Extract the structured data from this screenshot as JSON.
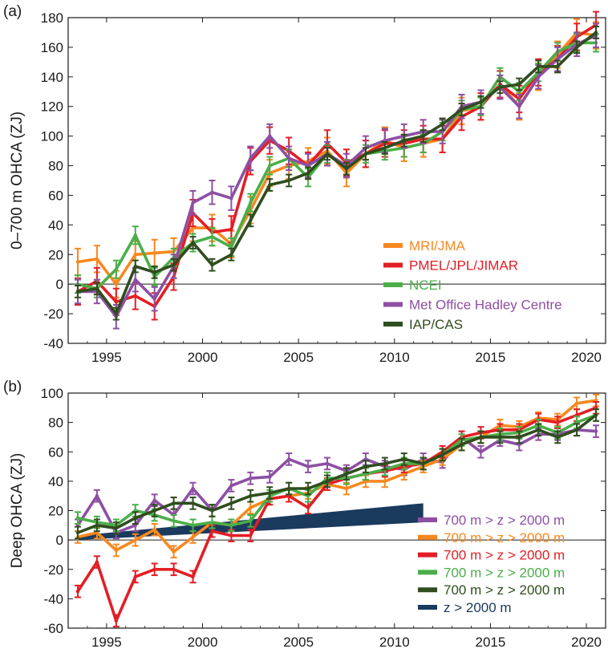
{
  "chart_data": [
    {
      "panel_label": "(a)",
      "type": "line",
      "ylabel": "0–700 m OHCA (ZJ)",
      "xlim": [
        1993,
        2021
      ],
      "ylim": [
        -40,
        180
      ],
      "xticks": [
        1995,
        2000,
        2005,
        2010,
        2015,
        2020
      ],
      "yticks": [
        -40,
        -20,
        0,
        20,
        40,
        60,
        80,
        100,
        120,
        140,
        160,
        180
      ],
      "zero_line": true,
      "legend_position": "bottom-right",
      "x": [
        1993.5,
        1994.5,
        1995.5,
        1996.5,
        1997.5,
        1998.5,
        1999.5,
        2000.5,
        2001.5,
        2002.5,
        2003.5,
        2004.5,
        2005.5,
        2006.5,
        2007.5,
        2008.5,
        2009.5,
        2010.5,
        2011.5,
        2012.5,
        2013.5,
        2014.5,
        2015.5,
        2016.5,
        2017.5,
        2018.5,
        2019.5,
        2020.5
      ],
      "series": [
        {
          "name": "MRI/JMA",
          "color": "#f7881f",
          "err": 9,
          "values": [
            15,
            17,
            0,
            20,
            21,
            22,
            38,
            38,
            27,
            50,
            75,
            80,
            83,
            90,
            75,
            88,
            97,
            92,
            95,
            98,
            117,
            120,
            135,
            120,
            140,
            155,
            170,
            168
          ]
        },
        {
          "name": "PMEL/JPL/JIMAR",
          "color": "#e31e24",
          "err": 9,
          "values": [
            -5,
            2,
            -12,
            -8,
            -15,
            5,
            48,
            35,
            37,
            83,
            97,
            90,
            80,
            95,
            82,
            88,
            95,
            95,
            98,
            98,
            113,
            120,
            135,
            125,
            143,
            152,
            167,
            175
          ]
        },
        {
          "name": "NCEI",
          "color": "#4bae49",
          "err": 6,
          "values": [
            0,
            -3,
            10,
            33,
            5,
            18,
            28,
            32,
            25,
            55,
            80,
            85,
            72,
            88,
            78,
            88,
            90,
            92,
            95,
            103,
            118,
            120,
            140,
            130,
            143,
            157,
            163,
            163
          ]
        },
        {
          "name": "Met Office Hadley Centre",
          "color": "#8d4fa3",
          "err": 8,
          "values": [
            -5,
            -5,
            -22,
            3,
            -10,
            12,
            55,
            62,
            58,
            85,
            100,
            85,
            80,
            88,
            80,
            92,
            97,
            100,
            103,
            103,
            120,
            123,
            133,
            120,
            140,
            152,
            162,
            168
          ]
        },
        {
          "name": "IAP/CAS",
          "color": "#2f4d1e",
          "err": 4,
          "values": [
            -5,
            -3,
            -20,
            12,
            8,
            13,
            28,
            13,
            20,
            43,
            67,
            70,
            75,
            88,
            78,
            88,
            92,
            97,
            100,
            108,
            118,
            123,
            133,
            135,
            147,
            147,
            160,
            170
          ]
        }
      ]
    },
    {
      "panel_label": "(b)",
      "type": "line",
      "ylabel": "Deep OHCA (ZJ)",
      "xlim": [
        1993,
        2021
      ],
      "ylim": [
        -60,
        100
      ],
      "xticks": [
        1995,
        2000,
        2005,
        2010,
        2015,
        2020
      ],
      "yticks": [
        -60,
        -40,
        -20,
        0,
        20,
        40,
        60,
        80,
        100
      ],
      "zero_line": true,
      "legend_position": "bottom-right",
      "x": [
        1993.5,
        1994.5,
        1995.5,
        1996.5,
        1997.5,
        1998.5,
        1999.5,
        2000.5,
        2001.5,
        2002.5,
        2003.5,
        2004.5,
        2005.5,
        2006.5,
        2007.5,
        2008.5,
        2009.5,
        2010.5,
        2011.5,
        2012.5,
        2013.5,
        2014.5,
        2015.5,
        2016.5,
        2017.5,
        2018.5,
        2019.5,
        2020.5
      ],
      "series": [
        {
          "name": "700 m > z > 2000 m",
          "color": "#8d4fa3",
          "err": 4,
          "values": [
            10,
            30,
            5,
            10,
            27,
            17,
            35,
            20,
            37,
            42,
            43,
            55,
            50,
            52,
            47,
            55,
            50,
            48,
            55,
            53,
            70,
            60,
            68,
            65,
            72,
            72,
            75,
            74
          ]
        },
        {
          "name": "700 m > z > 2000 m",
          "color": "#f7881f",
          "err": 4,
          "values": [
            2,
            5,
            -7,
            0,
            7,
            -8,
            2,
            12,
            10,
            22,
            28,
            30,
            32,
            38,
            35,
            40,
            40,
            45,
            50,
            55,
            65,
            70,
            78,
            77,
            83,
            82,
            93,
            95
          ]
        },
        {
          "name": "700 m > z > 2000 m",
          "color": "#e31e24",
          "err": 4,
          "values": [
            -35,
            -15,
            -55,
            -25,
            -20,
            -20,
            -25,
            6,
            3,
            3,
            28,
            30,
            22,
            38,
            42,
            45,
            47,
            50,
            52,
            60,
            70,
            73,
            75,
            75,
            82,
            80,
            85,
            90
          ]
        },
        {
          "name": "700 m > z > 2000 m",
          "color": "#4bae49",
          "err": 4,
          "values": [
            15,
            12,
            10,
            20,
            17,
            13,
            10,
            12,
            10,
            13,
            30,
            35,
            30,
            42,
            42,
            45,
            48,
            52,
            52,
            58,
            68,
            70,
            72,
            73,
            78,
            73,
            80,
            85
          ]
        },
        {
          "name": "700 m > z > 2000 m",
          "color": "#2f4d1e",
          "err": 4,
          "values": [
            5,
            10,
            8,
            15,
            20,
            25,
            25,
            20,
            25,
            30,
            32,
            35,
            35,
            40,
            45,
            50,
            52,
            55,
            52,
            58,
            65,
            70,
            70,
            70,
            75,
            70,
            75,
            85
          ]
        }
      ],
      "band": {
        "name": "z > 2000 m",
        "color": "#1a3a5e",
        "x": [
          1993.5,
          2011.5
        ],
        "lower": [
          0,
          12
        ],
        "upper": [
          3,
          25
        ]
      }
    }
  ]
}
